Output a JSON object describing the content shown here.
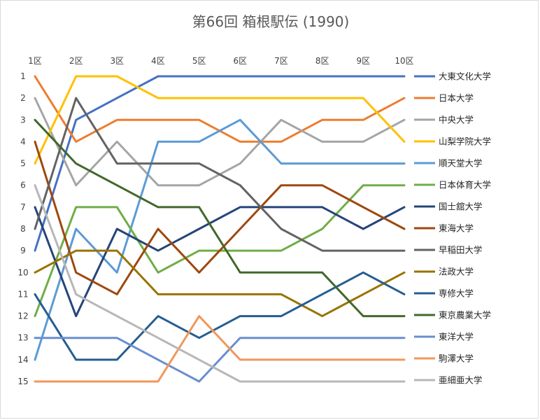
{
  "chart_data": {
    "type": "line",
    "title": "第66回 箱根駅伝 (1990)",
    "xlabel": "",
    "ylabel": "",
    "categories": [
      "1区",
      "2区",
      "3区",
      "4区",
      "5区",
      "6区",
      "7区",
      "8区",
      "9区",
      "10区"
    ],
    "y_ticks": [
      1,
      2,
      3,
      4,
      5,
      6,
      7,
      8,
      9,
      10,
      11,
      12,
      13,
      14,
      15
    ],
    "ylim": [
      1,
      15
    ],
    "y_reversed": true,
    "grid": false,
    "legend_position": "right",
    "series": [
      {
        "name": "大東文化大学",
        "color": "#4472C4",
        "values": [
          9,
          3,
          2,
          1,
          1,
          1,
          1,
          1,
          1,
          1
        ]
      },
      {
        "name": "日本大学",
        "color": "#ED7D31",
        "values": [
          1,
          4,
          3,
          3,
          3,
          4,
          4,
          3,
          3,
          2
        ]
      },
      {
        "name": "中央大学",
        "color": "#A5A5A5",
        "values": [
          2,
          6,
          4,
          6,
          6,
          5,
          3,
          4,
          4,
          3
        ]
      },
      {
        "name": "山梨学院大学",
        "color": "#FFC000",
        "values": [
          5,
          1,
          1,
          2,
          2,
          2,
          2,
          2,
          2,
          4
        ]
      },
      {
        "name": "順天堂大学",
        "color": "#5B9BD5",
        "values": [
          14,
          8,
          10,
          4,
          4,
          3,
          5,
          5,
          5,
          5
        ]
      },
      {
        "name": "日本体育大学",
        "color": "#70AD47",
        "values": [
          12,
          7,
          7,
          10,
          9,
          9,
          9,
          8,
          6,
          6
        ]
      },
      {
        "name": "国士舘大学",
        "color": "#264478",
        "values": [
          7,
          12,
          8,
          9,
          8,
          7,
          7,
          7,
          8,
          7
        ]
      },
      {
        "name": "東海大学",
        "color": "#9E480E",
        "values": [
          4,
          10,
          11,
          8,
          10,
          8,
          6,
          6,
          7,
          8
        ]
      },
      {
        "name": "早稲田大学",
        "color": "#636363",
        "values": [
          8,
          2,
          5,
          5,
          5,
          6,
          8,
          9,
          9,
          9
        ]
      },
      {
        "name": "法政大学",
        "color": "#997300",
        "values": [
          10,
          9,
          9,
          11,
          11,
          11,
          11,
          12,
          11,
          10
        ]
      },
      {
        "name": "専修大学",
        "color": "#255E91",
        "values": [
          11,
          14,
          14,
          12,
          13,
          12,
          12,
          11,
          10,
          11
        ]
      },
      {
        "name": "東京農業大学",
        "color": "#43682B",
        "values": [
          3,
          5,
          6,
          7,
          7,
          10,
          10,
          10,
          12,
          12
        ]
      },
      {
        "name": "東洋大学",
        "color": "#698ED0",
        "values": [
          13,
          13,
          13,
          14,
          15,
          13,
          13,
          13,
          13,
          13
        ]
      },
      {
        "name": "駒澤大学",
        "color": "#F1975A",
        "values": [
          15,
          15,
          15,
          15,
          12,
          14,
          14,
          14,
          14,
          14
        ]
      },
      {
        "name": "亜細亜大学",
        "color": "#B7B7B7",
        "values": [
          6,
          11,
          12,
          13,
          14,
          15,
          15,
          15,
          15,
          15
        ]
      }
    ]
  }
}
